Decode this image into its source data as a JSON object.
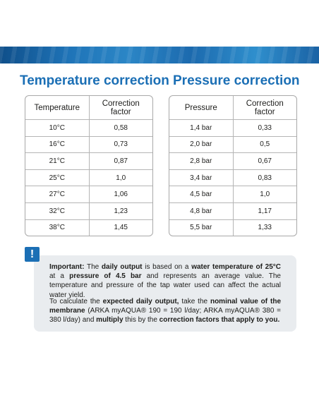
{
  "temperature": {
    "title": "Temperature correction",
    "headers": [
      "Temperature",
      "Correction factor"
    ],
    "rows": [
      [
        "10°C",
        "0,58"
      ],
      [
        "16°C",
        "0,73"
      ],
      [
        "21°C",
        "0,87"
      ],
      [
        "25°C",
        "1,0"
      ],
      [
        "27°C",
        "1,06"
      ],
      [
        "32°C",
        "1,23"
      ],
      [
        "38°C",
        "1,45"
      ]
    ]
  },
  "pressure": {
    "title": "Pressure correction",
    "headers": [
      "Pressure",
      "Correction factor"
    ],
    "rows": [
      [
        "1,4 bar",
        "0,33"
      ],
      [
        "2,0 bar",
        "0,5"
      ],
      [
        "2,8 bar",
        "0,67"
      ],
      [
        "3,4 bar",
        "0,83"
      ],
      [
        "4,5 bar",
        "1,0"
      ],
      [
        "4,8 bar",
        "1,17"
      ],
      [
        "5,5 bar",
        "1,33"
      ]
    ]
  },
  "note": {
    "icon": "!",
    "p1": [
      {
        "t": "Important:",
        "b": true
      },
      {
        "t": " The ",
        "b": false
      },
      {
        "t": "daily output",
        "b": true
      },
      {
        "t": " is based on a ",
        "b": false
      },
      {
        "t": "water temperature of 25°C",
        "b": true
      },
      {
        "t": " at a ",
        "b": false
      },
      {
        "t": "pressure of 4.5 bar",
        "b": true
      },
      {
        "t": " and represents an average value. The temperature and pressure of the tap water used can affect the actual water yield.",
        "b": false
      }
    ],
    "p2": [
      {
        "t": "To calculate the ",
        "b": false
      },
      {
        "t": "expected daily output,",
        "b": true
      },
      {
        "t": " take the ",
        "b": false
      },
      {
        "t": "nominal value of the membrane",
        "b": true
      },
      {
        "t": " (ARKA myAQUA® 190 = 190 l/day; ARKA myAQUA® 380 = 380 l/day) and ",
        "b": false
      },
      {
        "t": "multiply",
        "b": true
      },
      {
        "t": " this by the ",
        "b": false
      },
      {
        "t": "correction factors that apply to you.",
        "b": true
      }
    ]
  },
  "colors": {
    "accent": "#1b6fb5",
    "note_bg": "#e9ecef"
  }
}
